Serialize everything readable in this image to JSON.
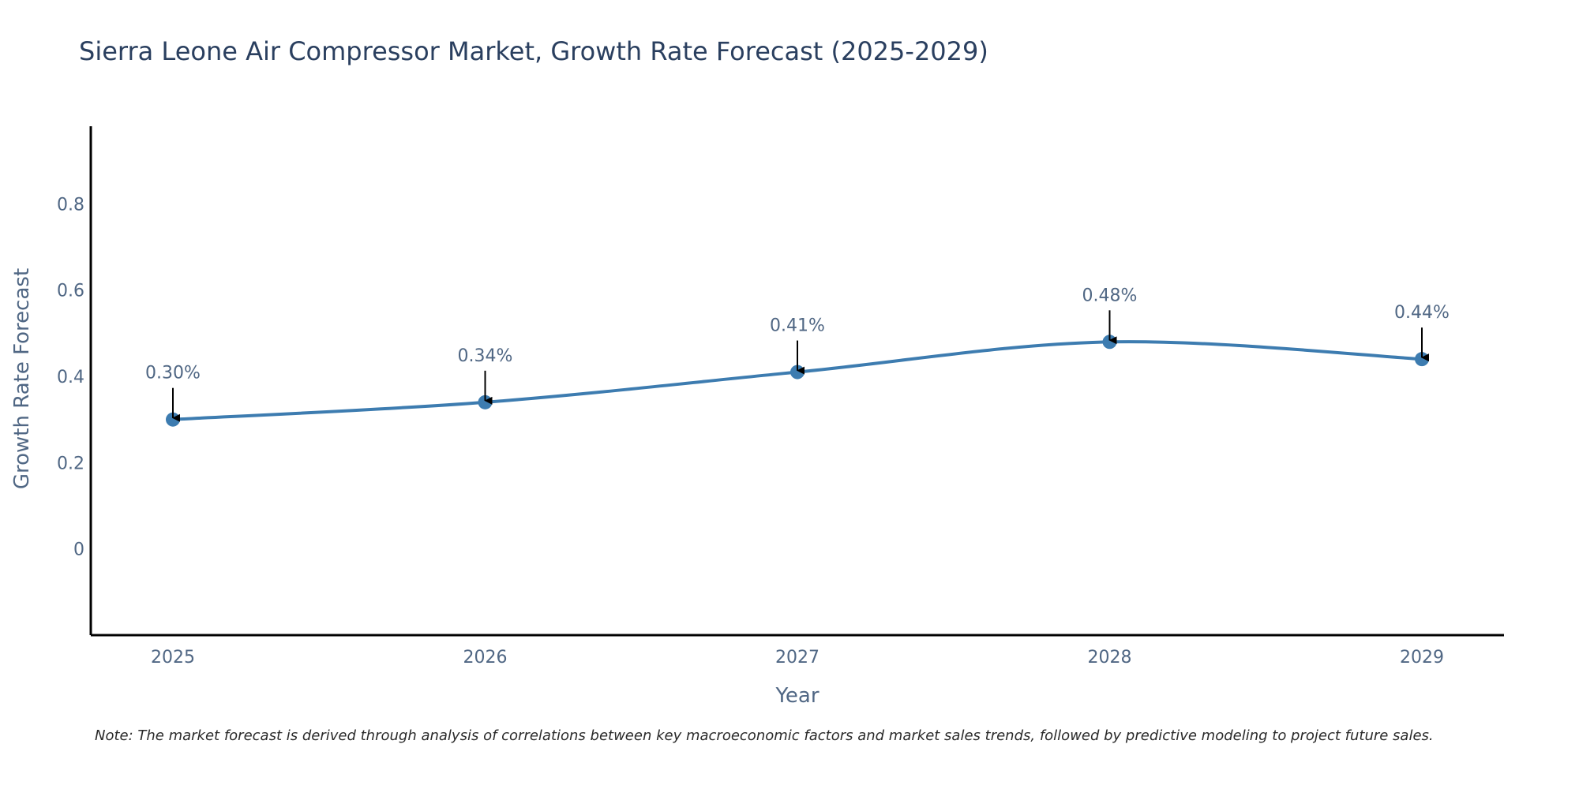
{
  "chart_data": {
    "type": "line",
    "title": "Sierra Leone Air Compressor Market, Growth Rate Forecast (2025-2029)",
    "xlabel": "Year",
    "ylabel": "Growth Rate Forecast",
    "categories": [
      "2025",
      "2026",
      "2027",
      "2028",
      "2029"
    ],
    "series": [
      {
        "name": "Growth Rate Forecast",
        "values": [
          0.3,
          0.34,
          0.41,
          0.48,
          0.44
        ],
        "labels": [
          "0.30%",
          "0.34%",
          "0.41%",
          "0.48%",
          "0.44%"
        ]
      }
    ],
    "ylim": [
      -0.2,
      0.98
    ],
    "yticks": [
      0,
      0.2,
      0.4,
      0.6,
      0.8
    ],
    "ytick_labels": [
      "0",
      "0.2",
      "0.4",
      "0.6",
      "0.8"
    ],
    "grid": false,
    "line_color": "#3d7cb0",
    "annotation_arrow_color": "#000000",
    "note": "Note: The market forecast is derived through analysis of correlations between key macroeconomic factors and market sales trends, followed by predictive modeling to project future sales."
  }
}
